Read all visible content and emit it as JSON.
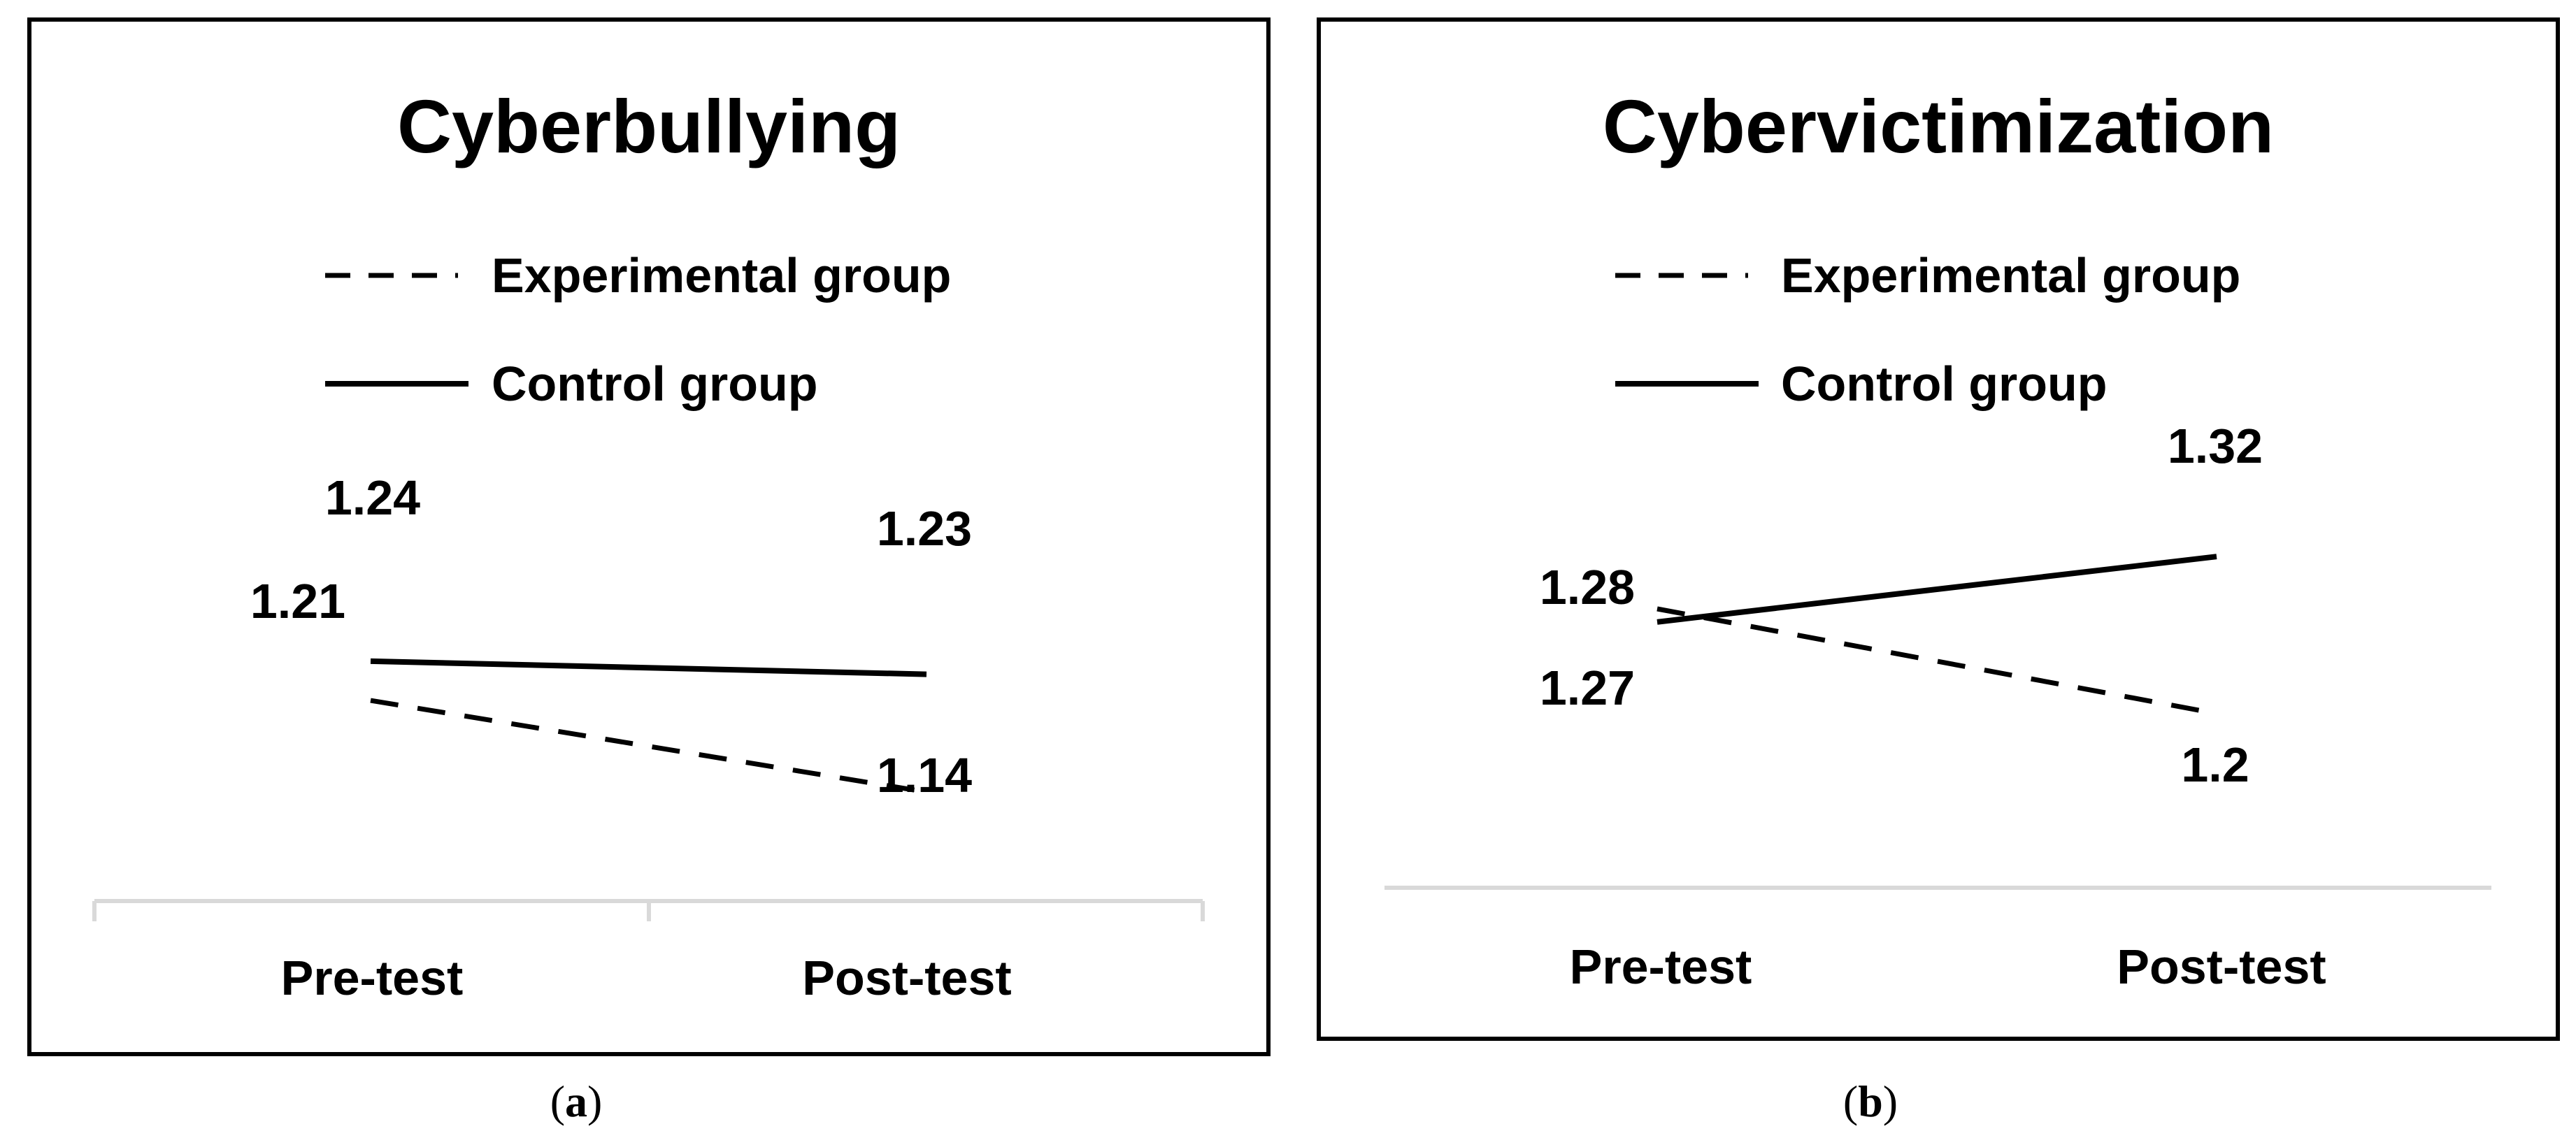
{
  "colors": {
    "line": "#000000",
    "axis": "#d9d9d9",
    "frame": "#000000",
    "background": "#ffffff"
  },
  "chart_data": [
    {
      "type": "line",
      "title": "Cyberbullying",
      "caption_letter": "a",
      "categories": [
        "Pre-test",
        "Post-test"
      ],
      "legend": [
        {
          "name": "Experimental group",
          "style": "dashed"
        },
        {
          "name": "Control group",
          "style": "solid"
        }
      ],
      "series": [
        {
          "name": "Experimental group",
          "style": "dashed",
          "values": [
            1.21,
            1.14
          ],
          "labels": [
            "1.21",
            "1.14"
          ]
        },
        {
          "name": "Control group",
          "style": "solid",
          "values": [
            1.24,
            1.23
          ],
          "labels": [
            "1.24",
            "1.23"
          ]
        }
      ],
      "xlabel": "",
      "ylabel": "",
      "ylim": [
        1.1,
        1.35
      ],
      "grid": false,
      "legend_placement": "top"
    },
    {
      "type": "line",
      "title": "Cybervictimization",
      "caption_letter": "b",
      "categories": [
        "Pre-test",
        "Post-test"
      ],
      "legend": [
        {
          "name": "Experimental group",
          "style": "dashed"
        },
        {
          "name": "Control group",
          "style": "solid"
        }
      ],
      "series": [
        {
          "name": "Experimental group",
          "style": "dashed",
          "values": [
            1.28,
            1.2
          ],
          "labels": [
            "1.28",
            "1.2"
          ]
        },
        {
          "name": "Control group",
          "style": "solid",
          "values": [
            1.27,
            1.32
          ],
          "labels": [
            "1.27",
            "1.32"
          ]
        }
      ],
      "xlabel": "",
      "ylabel": "",
      "ylim": [
        1.1,
        1.35
      ],
      "grid": false,
      "legend_placement": "top"
    }
  ]
}
